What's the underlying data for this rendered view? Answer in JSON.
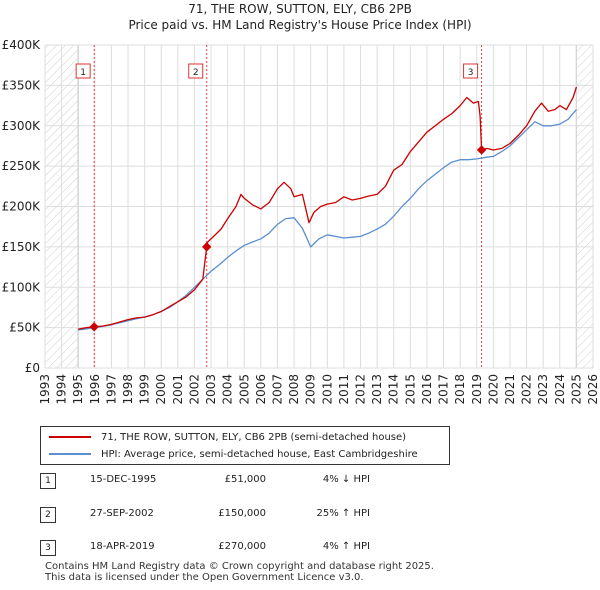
{
  "chart_data": {
    "type": "line",
    "title": "71, THE ROW, SUTTON, ELY, CB6 2PB",
    "subtitle": "Price paid vs. HM Land Registry's House Price Index (HPI)",
    "xlabel": "",
    "ylabel": "",
    "xlim": [
      1993,
      2026
    ],
    "ylim": [
      0,
      400000
    ],
    "x_ticks": [
      "1993",
      "1994",
      "1995",
      "1996",
      "1997",
      "1998",
      "1999",
      "2000",
      "2001",
      "2002",
      "2003",
      "2004",
      "2005",
      "2006",
      "2007",
      "2008",
      "2009",
      "2010",
      "2011",
      "2012",
      "2013",
      "2014",
      "2015",
      "2016",
      "2017",
      "2018",
      "2019",
      "2020",
      "2021",
      "2022",
      "2023",
      "2024",
      "2025",
      "2026"
    ],
    "y_ticks": [
      {
        "value": 0,
        "label": "£0"
      },
      {
        "value": 50000,
        "label": "£50K"
      },
      {
        "value": 100000,
        "label": "£100K"
      },
      {
        "value": 150000,
        "label": "£150K"
      },
      {
        "value": 200000,
        "label": "£200K"
      },
      {
        "value": 250000,
        "label": "£250K"
      },
      {
        "value": 300000,
        "label": "£300K"
      },
      {
        "value": 350000,
        "label": "£350K"
      },
      {
        "value": 400000,
        "label": "£400K"
      }
    ],
    "grid": true,
    "hatched_regions": [
      [
        1993,
        1995.0
      ],
      [
        2025.0,
        2026
      ]
    ],
    "series": [
      {
        "name": "71, THE ROW, SUTTON, ELY, CB6 2PB (semi-detached house)",
        "color": "#cc0000",
        "x": [
          1995.0,
          1995.5,
          1995.96,
          1996.5,
          1997.0,
          1997.5,
          1998.0,
          1998.5,
          1999.0,
          1999.5,
          2000.0,
          2000.5,
          2001.0,
          2001.5,
          2002.0,
          2002.5,
          2002.74,
          2002.8,
          2003.2,
          2003.6,
          2004.0,
          2004.5,
          2004.8,
          2005.0,
          2005.5,
          2006.0,
          2006.5,
          2007.0,
          2007.4,
          2007.8,
          2008.0,
          2008.5,
          2008.9,
          2009.2,
          2009.6,
          2010.0,
          2010.5,
          2011.0,
          2011.5,
          2012.0,
          2012.5,
          2013.0,
          2013.5,
          2014.0,
          2014.5,
          2015.0,
          2015.5,
          2016.0,
          2016.5,
          2017.0,
          2017.5,
          2018.0,
          2018.4,
          2018.8,
          2019.1,
          2019.2,
          2019.29,
          2019.6,
          2020.0,
          2020.5,
          2021.0,
          2021.5,
          2022.0,
          2022.5,
          2022.9,
          2023.3,
          2023.7,
          2024.0,
          2024.4,
          2024.8,
          2025.0
        ],
        "values": [
          48000,
          50000,
          51000,
          52000,
          54000,
          57000,
          60000,
          62000,
          63000,
          66000,
          70000,
          76000,
          82000,
          88000,
          97000,
          110000,
          150000,
          156000,
          164000,
          172000,
          185000,
          200000,
          215000,
          210000,
          202000,
          197000,
          205000,
          222000,
          230000,
          222000,
          212000,
          215000,
          180000,
          193000,
          200000,
          203000,
          205000,
          212000,
          208000,
          210000,
          213000,
          215000,
          225000,
          245000,
          252000,
          268000,
          280000,
          292000,
          300000,
          308000,
          315000,
          325000,
          335000,
          328000,
          330000,
          312000,
          270000,
          272000,
          270000,
          272000,
          278000,
          288000,
          300000,
          318000,
          328000,
          318000,
          320000,
          325000,
          320000,
          335000,
          348000
        ]
      },
      {
        "name": "HPI: Average price, semi-detached house, East Cambridgeshire",
        "color": "#5b8fd0",
        "x": [
          1995.0,
          1995.5,
          1996.0,
          1996.5,
          1997.0,
          1997.5,
          1998.0,
          1998.5,
          1999.0,
          1999.5,
          2000.0,
          2000.5,
          2001.0,
          2001.5,
          2002.0,
          2002.5,
          2003.0,
          2003.5,
          2004.0,
          2004.5,
          2005.0,
          2005.5,
          2006.0,
          2006.5,
          2007.0,
          2007.5,
          2008.0,
          2008.5,
          2009.0,
          2009.5,
          2010.0,
          2010.5,
          2011.0,
          2011.5,
          2012.0,
          2012.5,
          2013.0,
          2013.5,
          2014.0,
          2014.5,
          2015.0,
          2015.5,
          2016.0,
          2016.5,
          2017.0,
          2017.5,
          2018.0,
          2018.5,
          2019.0,
          2019.3,
          2019.6,
          2020.0,
          2020.5,
          2021.0,
          2021.5,
          2022.0,
          2022.5,
          2023.0,
          2023.5,
          2024.0,
          2024.5,
          2025.0
        ],
        "values": [
          47000,
          48500,
          50000,
          51500,
          53500,
          56000,
          58500,
          61000,
          63000,
          66000,
          70000,
          75000,
          82000,
          90000,
          100000,
          110000,
          120000,
          128000,
          137000,
          145000,
          152000,
          156000,
          160000,
          167000,
          178000,
          185000,
          186000,
          173000,
          150000,
          160000,
          165000,
          163000,
          161000,
          162000,
          163000,
          167000,
          172000,
          178000,
          188000,
          200000,
          210000,
          222000,
          232000,
          240000,
          248000,
          255000,
          258000,
          258000,
          259000,
          260000,
          261000,
          262000,
          268000,
          275000,
          285000,
          295000,
          305000,
          300000,
          300000,
          302000,
          308000,
          320000
        ]
      }
    ],
    "sales": [
      {
        "label": "1",
        "x": 1995.96,
        "value": 51000
      },
      {
        "label": "2",
        "x": 2002.74,
        "value": 150000
      },
      {
        "label": "3",
        "x": 2019.29,
        "value": 270000
      }
    ]
  },
  "legend": {
    "property_label": "71, THE ROW, SUTTON, ELY, CB6 2PB (semi-detached house)",
    "hpi_label": "HPI: Average price, semi-detached house, East Cambridgeshire",
    "property_color": "#cc0000",
    "hpi_color": "#5b8fd0"
  },
  "transactions": [
    {
      "num": "1",
      "date": "15-DEC-1995",
      "price": "£51,000",
      "hpi": "4% ↓ HPI"
    },
    {
      "num": "2",
      "date": "27-SEP-2002",
      "price": "£150,000",
      "hpi": "25% ↑ HPI"
    },
    {
      "num": "3",
      "date": "18-APR-2019",
      "price": "£270,000",
      "hpi": "4% ↑ HPI"
    }
  ],
  "footer": {
    "line1": "Contains HM Land Registry data © Crown copyright and database right 2025.",
    "line2": "This data is licensed under the Open Government Licence v3.0."
  }
}
